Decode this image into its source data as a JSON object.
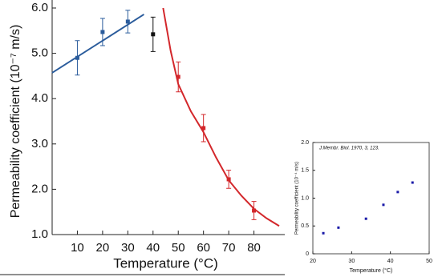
{
  "chart_data": [
    {
      "type": "scatter",
      "y_label": "Permeability coefficient (10⁻⁷ m/s)",
      "x_label": "Temperature (°C)",
      "xlim": [
        0,
        90
      ],
      "ylim": [
        1,
        6
      ],
      "xticks": [
        10,
        20,
        30,
        40,
        50,
        60,
        70,
        80
      ],
      "yticks": [
        {
          "value": 1,
          "label": "1.0"
        },
        {
          "value": 2,
          "label": "2.0"
        },
        {
          "value": 3,
          "label": "3.0"
        },
        {
          "value": 4,
          "label": "4.0"
        },
        {
          "value": 5,
          "label": "5.0"
        },
        {
          "value": 6,
          "label": "6.0"
        }
      ],
      "series": [
        {
          "color": "#2b5c9c",
          "x": [
            10,
            20,
            30
          ],
          "values": [
            4.9,
            5.47,
            5.7
          ],
          "errors": [
            0.38,
            0.3,
            0.25
          ]
        },
        {
          "color": "#111111",
          "x": [
            40
          ],
          "values": [
            5.42
          ],
          "errors": [
            0.38
          ]
        },
        {
          "color": "#d3272b",
          "x": [
            50,
            60,
            70,
            80
          ],
          "values": [
            4.48,
            3.35,
            2.22,
            1.53
          ],
          "errors": [
            0.33,
            0.3,
            0.2,
            0.2
          ]
        }
      ],
      "fit_lines": [
        {
          "color": "#2b5c9c",
          "x": [
            0,
            36.4
          ],
          "values": [
            4.57,
            5.86
          ]
        },
        {
          "color": "#d3272b",
          "x": [
            44,
            47,
            50,
            55,
            60,
            65,
            70,
            75,
            80,
            85,
            90
          ],
          "values": [
            6.0,
            5.05,
            4.32,
            3.72,
            3.26,
            2.7,
            2.2,
            1.86,
            1.57,
            1.36,
            1.19
          ]
        }
      ]
    },
    {
      "type": "scatter",
      "annotation": "J.Membr. Biol. 1970, 3, 123.",
      "y_label": "Permeability coefficient (10⁻⁴ m/s)",
      "x_label": "Temperature (°C)",
      "xlim": [
        20,
        50
      ],
      "ylim": [
        0,
        2
      ],
      "xticks": [
        20,
        30,
        40,
        50
      ],
      "yticks": [
        0,
        0.5,
        {
          "value": 1,
          "label": "1.0"
        },
        1.5,
        {
          "value": 2,
          "label": "2.0"
        }
      ],
      "series": [
        {
          "color": "#1a1aa8",
          "x": [
            22.7,
            26.6,
            33.7,
            38.2,
            41.9,
            45.7
          ],
          "values": [
            0.37,
            0.47,
            0.63,
            0.88,
            1.11,
            1.28
          ]
        }
      ]
    }
  ]
}
